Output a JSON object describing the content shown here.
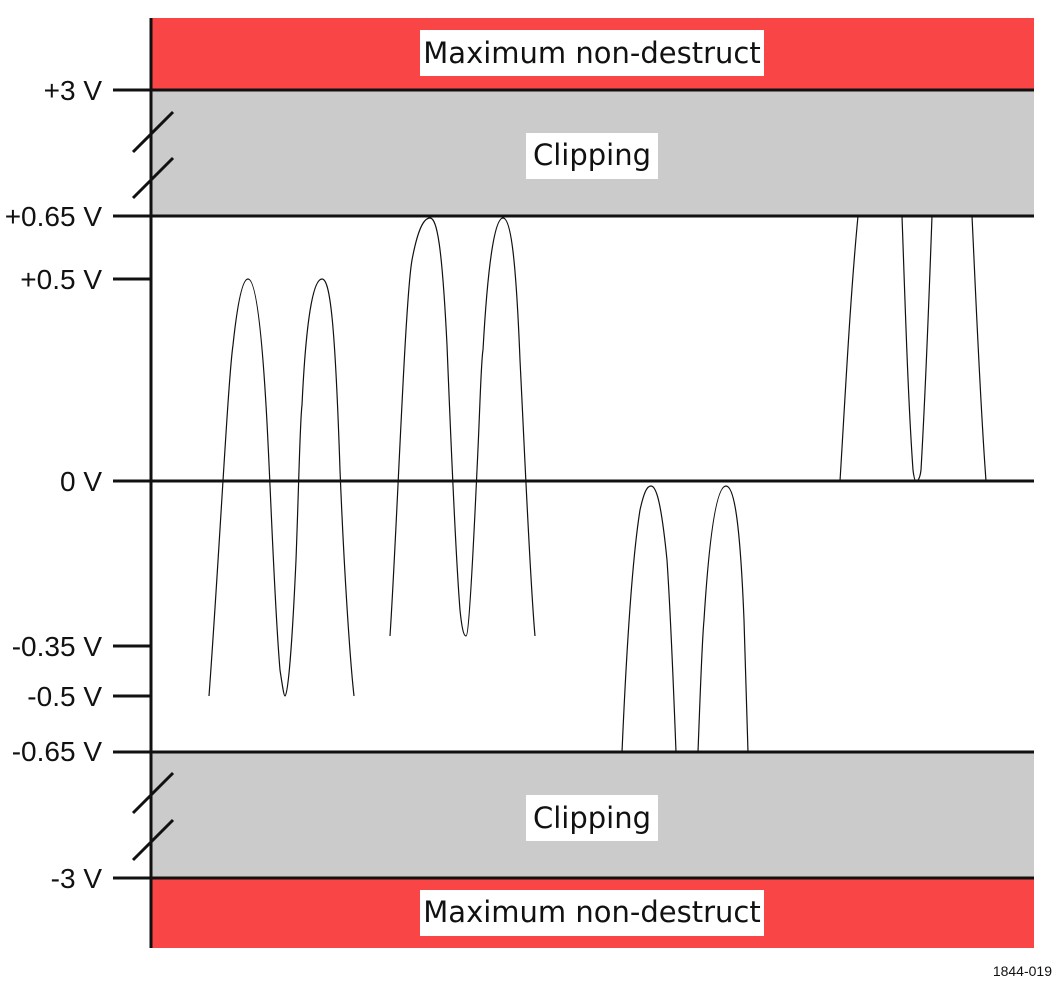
{
  "zones": {
    "top_max": "Maximum non-destruct",
    "top_clip": "Clipping",
    "bottom_clip": "Clipping",
    "bottom_max": "Maximum non-destruct"
  },
  "levels": {
    "plus_3": "+3 V",
    "plus_065": "+0.65 V",
    "plus_05": "+0.5 V",
    "zero": "0 V",
    "minus_035": "-0.35 V",
    "minus_05": "-0.5 V",
    "minus_065": "-0.65 V",
    "minus_3": "-3 V"
  },
  "figure_id": "1844-019",
  "colors": {
    "max_zone": "#f94545",
    "clip_zone": "#cbcbcb",
    "line": "#111111"
  }
}
